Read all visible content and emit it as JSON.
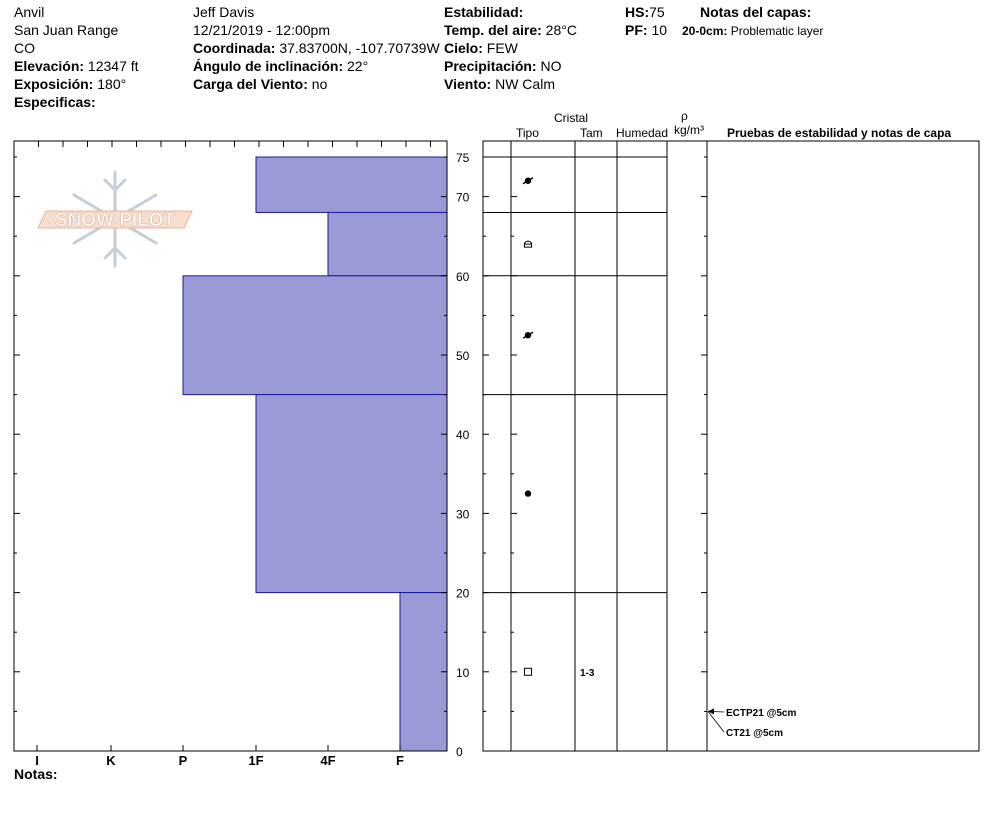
{
  "header": {
    "location": "Anvil",
    "range": "San Juan Range",
    "state": "CO",
    "elevation_label": "Elevación:",
    "elevation_value": "12347 ft",
    "aspect_label": "Exposición:",
    "aspect_value": "180°",
    "specifics_label": "Especificas:",
    "observer": "Jeff Davis",
    "datetime": "12/21/2019 - 12:00pm",
    "coord_label": "Coordinada:",
    "coord_value": "37.83700N, -107.70739W",
    "slope_label": "Ángulo de inclinación:",
    "slope_value": "22°",
    "windload_label": "Carga del Viento:",
    "windload_value": "no",
    "stability_label": "Estabilidad:",
    "airtemp_label": "Temp. del aire:",
    "airtemp_value": "28°C",
    "sky_label": "Cielo:",
    "sky_value": "FEW",
    "precip_label": "Precipitación:",
    "precip_value": "NO",
    "wind_label": "Viento:",
    "wind_value": "NW Calm",
    "hs_label": "HS:",
    "hs_value": "75",
    "pf_label": "PF:",
    "pf_value": "10",
    "layer_notes_label": "Notas del capas:",
    "layer_note_range": "20-0cm:",
    "layer_note_text": "Problematic layer"
  },
  "logo": {
    "text": "SNOW PILOT"
  },
  "columns": {
    "crystal": "Cristal",
    "type": "Tipo",
    "size": "Tam",
    "moisture": "Humedad",
    "rho": "ρ",
    "density_unit": "kg/m³",
    "tests": "Pruebas de estabilidad y notas de capa"
  },
  "footer": {
    "notes_label": "Notas:"
  },
  "colors": {
    "layer_fill": "#9999d6",
    "layer_stroke": "#1a1aa0"
  },
  "chart_data": {
    "type": "bar",
    "title": "",
    "xlabel": "",
    "ylabel": "",
    "hardness_scale": [
      "I",
      "K",
      "P",
      "1F",
      "4F",
      "F"
    ],
    "y_ticks": [
      0,
      10,
      20,
      30,
      40,
      50,
      60,
      70,
      75
    ],
    "ylim": [
      0,
      75
    ],
    "layers": [
      {
        "top": 75,
        "bottom": 68,
        "hardness": "1F"
      },
      {
        "top": 68,
        "bottom": 60,
        "hardness": "4F"
      },
      {
        "top": 60,
        "bottom": 45,
        "hardness": "P"
      },
      {
        "top": 45,
        "bottom": 20,
        "hardness": "1F"
      },
      {
        "top": 20,
        "bottom": 0,
        "hardness": "F"
      }
    ],
    "crystals": [
      {
        "height": 72,
        "type": "decomposing-fragments"
      },
      {
        "height": 64,
        "type": "rounded-faceted"
      },
      {
        "height": 52.5,
        "type": "decomposing-fragments"
      },
      {
        "height": 32.5,
        "type": "rounded-grains"
      },
      {
        "height": 10,
        "type": "faceted-crystals",
        "size": "1-3"
      }
    ],
    "tests": [
      {
        "height": 5,
        "label": "ECTP21 @5cm"
      },
      {
        "height": 5,
        "label": "CT21 @5cm"
      }
    ]
  }
}
